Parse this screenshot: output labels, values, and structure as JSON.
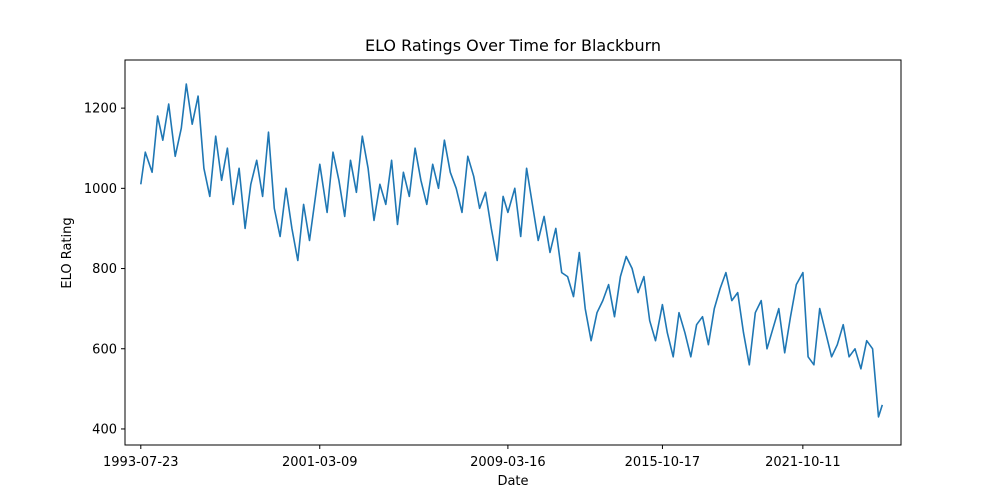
{
  "chart_data": {
    "type": "line",
    "title": "ELO Ratings Over Time for Blackburn",
    "xlabel": "Date",
    "ylabel": "ELO Rating",
    "xlim": [
      "1992-11-19",
      "2025-12-17"
    ],
    "ylim": [
      360,
      1320
    ],
    "grid": false,
    "legend": "none",
    "x_ticks": [
      "1993-07-23",
      "2001-03-09",
      "2009-03-16",
      "2015-10-17",
      "2021-10-11"
    ],
    "y_ticks": [
      400,
      600,
      800,
      1000,
      1200
    ],
    "line_color": "#1f77b4",
    "series": [
      {
        "x": [
          "1993-07-23",
          "1993-10-01",
          "1994-01-15",
          "1994-04-10",
          "1994-07-01",
          "1994-10-01",
          "1995-01-10",
          "1995-04-15",
          "1995-07-01",
          "1995-10-01",
          "1996-01-01",
          "1996-04-01",
          "1996-07-01",
          "1996-10-01",
          "1997-01-01",
          "1997-04-01",
          "1997-07-01",
          "1997-10-01",
          "1998-01-01",
          "1998-04-01",
          "1998-07-01",
          "1998-10-01",
          "1999-01-01",
          "1999-04-01",
          "1999-07-01",
          "1999-10-01",
          "2000-01-01",
          "2000-04-01",
          "2000-07-01",
          "2000-10-01",
          "2001-01-01",
          "2001-03-09",
          "2001-07-01",
          "2001-10-01",
          "2002-01-01",
          "2002-04-01",
          "2002-07-01",
          "2002-10-01",
          "2003-01-01",
          "2003-04-01",
          "2003-07-01",
          "2003-10-01",
          "2004-01-01",
          "2004-04-01",
          "2004-07-01",
          "2004-10-01",
          "2005-01-01",
          "2005-04-01",
          "2005-07-01",
          "2005-10-01",
          "2006-01-01",
          "2006-04-01",
          "2006-07-01",
          "2006-10-01",
          "2007-01-01",
          "2007-04-01",
          "2007-07-01",
          "2007-10-01",
          "2008-01-01",
          "2008-04-01",
          "2008-07-01",
          "2008-10-01",
          "2009-01-01",
          "2009-03-16",
          "2009-07-01",
          "2009-10-01",
          "2010-01-01",
          "2010-04-01",
          "2010-07-01",
          "2010-10-01",
          "2011-01-01",
          "2011-04-01",
          "2011-07-01",
          "2011-10-01",
          "2012-01-01",
          "2012-04-01",
          "2012-07-01",
          "2012-10-01",
          "2013-01-01",
          "2013-04-01",
          "2013-07-01",
          "2013-10-01",
          "2014-01-01",
          "2014-04-01",
          "2014-07-01",
          "2014-10-01",
          "2015-01-01",
          "2015-04-01",
          "2015-07-01",
          "2015-10-17",
          "2016-01-01",
          "2016-04-01",
          "2016-07-01",
          "2016-10-01",
          "2017-01-01",
          "2017-04-01",
          "2017-07-01",
          "2017-10-01",
          "2018-01-01",
          "2018-04-01",
          "2018-07-01",
          "2018-10-01",
          "2019-01-01",
          "2019-04-01",
          "2019-07-01",
          "2019-10-01",
          "2020-01-01",
          "2020-04-01",
          "2020-07-01",
          "2020-10-01",
          "2021-01-01",
          "2021-04-01",
          "2021-07-01",
          "2021-10-11",
          "2022-01-01",
          "2022-04-01",
          "2022-07-01",
          "2022-10-01",
          "2023-01-01",
          "2023-04-01",
          "2023-07-01",
          "2023-10-01",
          "2024-01-01",
          "2024-04-01",
          "2024-07-01",
          "2024-10-01",
          "2025-01-01",
          "2025-03-01"
        ],
        "y": [
          1010,
          1090,
          1040,
          1180,
          1120,
          1210,
          1080,
          1150,
          1260,
          1160,
          1230,
          1050,
          980,
          1130,
          1020,
          1100,
          960,
          1050,
          900,
          1010,
          1070,
          980,
          1140,
          950,
          880,
          1000,
          900,
          820,
          960,
          870,
          980,
          1060,
          940,
          1090,
          1020,
          930,
          1070,
          990,
          1130,
          1050,
          920,
          1010,
          960,
          1070,
          910,
          1040,
          980,
          1100,
          1020,
          960,
          1060,
          1000,
          1120,
          1040,
          1000,
          940,
          1080,
          1030,
          950,
          990,
          900,
          820,
          980,
          940,
          1000,
          880,
          1050,
          960,
          870,
          930,
          840,
          900,
          790,
          780,
          730,
          840,
          700,
          620,
          690,
          720,
          760,
          680,
          780,
          830,
          800,
          740,
          780,
          670,
          620,
          710,
          640,
          580,
          690,
          640,
          580,
          660,
          680,
          610,
          700,
          750,
          790,
          720,
          740,
          640,
          560,
          690,
          720,
          600,
          650,
          700,
          590,
          680,
          760,
          790,
          580,
          560,
          700,
          640,
          580,
          610,
          660,
          580,
          600,
          550,
          620,
          600,
          430,
          460
        ]
      }
    ]
  }
}
